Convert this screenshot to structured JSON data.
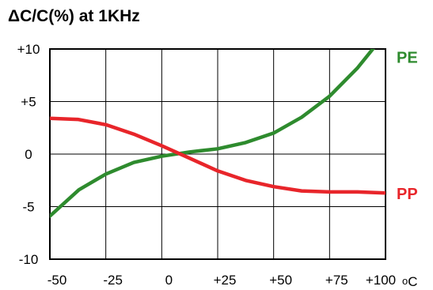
{
  "chart_data": {
    "type": "line",
    "title": "ΔC/C(%) at 1KHz",
    "xlabel": "",
    "ylabel": "",
    "x_unit": {
      "prefix": "o",
      "letter": "C"
    },
    "xlim": [
      -50,
      100
    ],
    "ylim": [
      -10,
      10
    ],
    "x_ticks": [
      {
        "value": -50,
        "label": "-50"
      },
      {
        "value": -25,
        "label": "-25"
      },
      {
        "value": 0,
        "label": "0"
      },
      {
        "value": 25,
        "label": "+25"
      },
      {
        "value": 50,
        "label": "+50"
      },
      {
        "value": 75,
        "label": "+75"
      },
      {
        "value": 100,
        "label": "+100"
      }
    ],
    "y_ticks": [
      {
        "value": 10,
        "label": "+10"
      },
      {
        "value": 5,
        "label": "+5"
      },
      {
        "value": 0,
        "label": "0"
      },
      {
        "value": -5,
        "label": "-5"
      },
      {
        "value": -10,
        "label": "-10"
      }
    ],
    "grid": true,
    "series": [
      {
        "name": "PE",
        "color": "#2e8b2e",
        "points": [
          [
            -50,
            -5.9
          ],
          [
            -37,
            -3.4
          ],
          [
            -25,
            -1.9
          ],
          [
            -12.5,
            -0.8
          ],
          [
            0,
            -0.2
          ],
          [
            12.5,
            0.2
          ],
          [
            25,
            0.5
          ],
          [
            37.5,
            1.1
          ],
          [
            50,
            2.0
          ],
          [
            62.5,
            3.5
          ],
          [
            75,
            5.5
          ],
          [
            87.5,
            8.2
          ],
          [
            100,
            11.5
          ]
        ]
      },
      {
        "name": "PP",
        "color": "#e8252a",
        "points": [
          [
            -50,
            3.4
          ],
          [
            -37.5,
            3.3
          ],
          [
            -25,
            2.8
          ],
          [
            -12.5,
            1.9
          ],
          [
            0,
            0.8
          ],
          [
            12.5,
            -0.4
          ],
          [
            25,
            -1.6
          ],
          [
            37.5,
            -2.5
          ],
          [
            50,
            -3.1
          ],
          [
            62.5,
            -3.5
          ],
          [
            75,
            -3.6
          ],
          [
            87.5,
            -3.6
          ],
          [
            100,
            -3.7
          ]
        ]
      }
    ]
  }
}
